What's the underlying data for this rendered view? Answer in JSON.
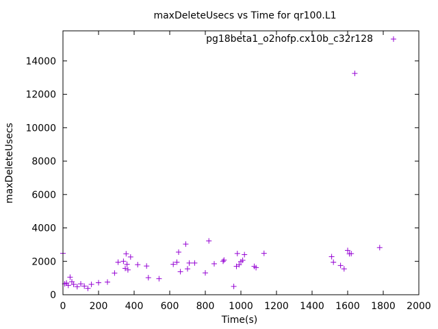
{
  "chart_data": {
    "type": "scatter",
    "title": "maxDeleteUsecs vs Time for qr100.L1",
    "xlabel": "Time(s)",
    "ylabel": "maxDeleteUsecs",
    "xlim": [
      0,
      2000
    ],
    "ylim": [
      0,
      15800
    ],
    "x_ticks": [
      0,
      200,
      400,
      600,
      800,
      1000,
      1200,
      1400,
      1600,
      1800,
      2000
    ],
    "y_ticks": [
      0,
      2000,
      4000,
      6000,
      8000,
      10000,
      12000,
      14000
    ],
    "legend_position": "top-right",
    "grid": false,
    "marker": "+",
    "series": [
      {
        "name": "pg18beta1_o2nofp.cx10b_c32r128",
        "color": "#9400d3",
        "points": [
          [
            0,
            2480
          ],
          [
            10,
            650
          ],
          [
            20,
            700
          ],
          [
            30,
            560
          ],
          [
            40,
            1050
          ],
          [
            50,
            780
          ],
          [
            60,
            620
          ],
          [
            80,
            480
          ],
          [
            100,
            650
          ],
          [
            120,
            520
          ],
          [
            140,
            380
          ],
          [
            160,
            620
          ],
          [
            200,
            720
          ],
          [
            250,
            760
          ],
          [
            290,
            1300
          ],
          [
            310,
            1950
          ],
          [
            340,
            2000
          ],
          [
            350,
            1580
          ],
          [
            355,
            2450
          ],
          [
            360,
            1820
          ],
          [
            365,
            1490
          ],
          [
            380,
            2260
          ],
          [
            420,
            1800
          ],
          [
            470,
            1720
          ],
          [
            480,
            1020
          ],
          [
            540,
            960
          ],
          [
            620,
            1820
          ],
          [
            640,
            1950
          ],
          [
            650,
            2550
          ],
          [
            660,
            1380
          ],
          [
            690,
            3030
          ],
          [
            700,
            1550
          ],
          [
            710,
            1900
          ],
          [
            740,
            1900
          ],
          [
            800,
            1310
          ],
          [
            820,
            3220
          ],
          [
            850,
            1850
          ],
          [
            900,
            2000
          ],
          [
            905,
            2080
          ],
          [
            960,
            500
          ],
          [
            975,
            1700
          ],
          [
            980,
            2470
          ],
          [
            990,
            1800
          ],
          [
            1000,
            1980
          ],
          [
            1010,
            2060
          ],
          [
            1020,
            2400
          ],
          [
            1075,
            1700
          ],
          [
            1085,
            1620
          ],
          [
            1130,
            2480
          ],
          [
            1510,
            2280
          ],
          [
            1520,
            1950
          ],
          [
            1560,
            1750
          ],
          [
            1580,
            1550
          ],
          [
            1600,
            2650
          ],
          [
            1610,
            2450
          ],
          [
            1620,
            2460
          ],
          [
            1640,
            13250
          ],
          [
            1780,
            2820
          ]
        ]
      }
    ]
  }
}
